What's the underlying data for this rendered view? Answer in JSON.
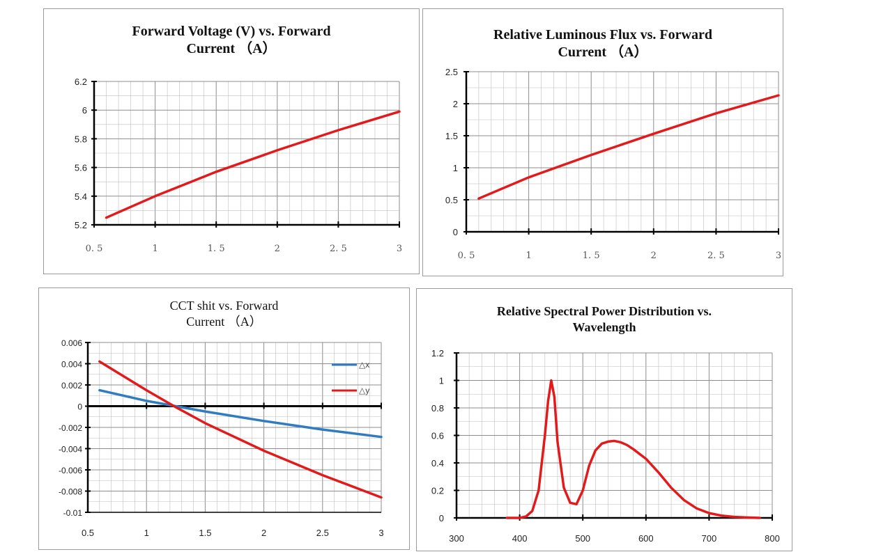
{
  "colors": {
    "red": "#e31a1c",
    "blue": "#2f7cc0",
    "grid": "#bdbdbd",
    "axis": "#000000"
  },
  "chart_data": [
    {
      "type": "line",
      "title_line1": "Forward Voltage (V) vs. Forward",
      "title_line2": "Current （A）",
      "xlabel": "",
      "ylabel": "",
      "xlim": [
        0.5,
        3
      ],
      "ylim": [
        5.2,
        6.2
      ],
      "x_ticks": [
        "0. 5",
        "1",
        "1. 5",
        "2",
        "2. 5",
        "3"
      ],
      "y_ticks": [
        "5.2",
        "5.4",
        "5.6",
        "5.8",
        "6",
        "6.2"
      ],
      "grid": true,
      "series": [
        {
          "x": [
            0.6,
            1.0,
            1.5,
            2.0,
            2.5,
            3.0
          ],
          "values": [
            5.25,
            5.4,
            5.57,
            5.72,
            5.86,
            5.99
          ],
          "color": "red"
        }
      ]
    },
    {
      "type": "line",
      "title_line1": "Relative Luminous Flux vs. Forward",
      "title_line2": "Current （A）",
      "xlabel": "",
      "ylabel": "",
      "xlim": [
        0.5,
        3
      ],
      "ylim": [
        0,
        2.5
      ],
      "x_ticks": [
        "0. 5",
        "1",
        "1. 5",
        "2",
        "2. 5",
        "3"
      ],
      "y_ticks": [
        "0",
        "0.5",
        "1",
        "1.5",
        "2",
        "2.5"
      ],
      "grid": true,
      "series": [
        {
          "x": [
            0.6,
            1.0,
            1.5,
            2.0,
            2.5,
            3.0
          ],
          "values": [
            0.52,
            0.85,
            1.2,
            1.53,
            1.85,
            2.13
          ],
          "color": "red"
        }
      ]
    },
    {
      "type": "line",
      "title_line1": "CCT shit vs. Forward",
      "title_line2": "Current （A）",
      "xlabel": "",
      "ylabel": "",
      "xlim": [
        0.5,
        3
      ],
      "ylim": [
        -0.01,
        0.006
      ],
      "x_ticks": [
        "0.5",
        "1",
        "1.5",
        "2",
        "2.5",
        "3"
      ],
      "y_ticks": [
        "-0.01",
        "-0.008",
        "-0.006",
        "-0.004",
        "-0.002",
        "0",
        "0.002",
        "0.004",
        "0.006"
      ],
      "grid": true,
      "legend": "right",
      "series": [
        {
          "name": "△x",
          "x": [
            0.6,
            1.0,
            1.25,
            1.5,
            2.0,
            2.5,
            3.0
          ],
          "values": [
            0.0015,
            0.0005,
            0.0,
            -0.0005,
            -0.0014,
            -0.0022,
            -0.0029
          ],
          "color": "blue"
        },
        {
          "name": "△y",
          "x": [
            0.6,
            1.0,
            1.25,
            1.5,
            2.0,
            2.5,
            3.0
          ],
          "values": [
            0.0042,
            0.0015,
            -0.0001,
            -0.0016,
            -0.0042,
            -0.0065,
            -0.0086
          ],
          "color": "red"
        }
      ]
    },
    {
      "type": "line",
      "title_line1": "Relative Spectral Power Distribution vs.",
      "title_line2": "Wavelength",
      "xlabel": "",
      "ylabel": "",
      "xlim": [
        300,
        800
      ],
      "ylim": [
        0,
        1.2
      ],
      "x_ticks": [
        "300",
        "400",
        "500",
        "600",
        "700",
        "800"
      ],
      "y_ticks": [
        "0",
        "0.2",
        "0.4",
        "0.6",
        "0.8",
        "1",
        "1.2"
      ],
      "grid": true,
      "series": [
        {
          "x": [
            380,
            400,
            410,
            420,
            430,
            440,
            445,
            450,
            455,
            460,
            470,
            480,
            490,
            500,
            510,
            520,
            530,
            540,
            550,
            560,
            570,
            580,
            600,
            620,
            640,
            660,
            680,
            700,
            720,
            740,
            760,
            780
          ],
          "values": [
            0.0,
            0.0,
            0.01,
            0.05,
            0.2,
            0.6,
            0.85,
            1.0,
            0.88,
            0.55,
            0.22,
            0.11,
            0.1,
            0.2,
            0.38,
            0.49,
            0.54,
            0.555,
            0.56,
            0.55,
            0.53,
            0.5,
            0.43,
            0.33,
            0.22,
            0.13,
            0.07,
            0.035,
            0.016,
            0.007,
            0.003,
            0.0
          ],
          "color": "red"
        }
      ]
    }
  ]
}
